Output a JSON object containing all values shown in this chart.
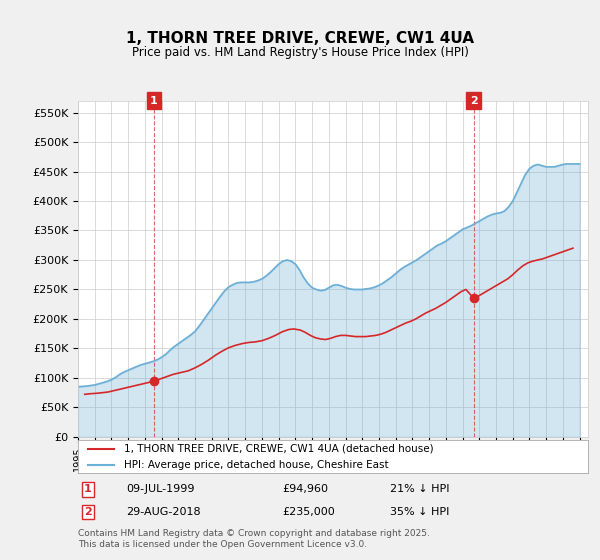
{
  "title": "1, THORN TREE DRIVE, CREWE, CW1 4UA",
  "subtitle": "Price paid vs. HM Land Registry's House Price Index (HPI)",
  "xlabel": "",
  "ylabel": "",
  "ylim": [
    0,
    570000
  ],
  "xlim_start": 1995.0,
  "xlim_end": 2025.5,
  "yticks": [
    0,
    50000,
    100000,
    150000,
    200000,
    250000,
    300000,
    350000,
    400000,
    450000,
    500000,
    550000
  ],
  "ytick_labels": [
    "£0",
    "£50K",
    "£100K",
    "£150K",
    "£200K",
    "£250K",
    "£300K",
    "£350K",
    "£400K",
    "£450K",
    "£500K",
    "£550K"
  ],
  "xticks": [
    1995,
    1996,
    1997,
    1998,
    1999,
    2000,
    2001,
    2002,
    2003,
    2004,
    2005,
    2006,
    2007,
    2008,
    2009,
    2010,
    2011,
    2012,
    2013,
    2014,
    2015,
    2016,
    2017,
    2018,
    2019,
    2020,
    2021,
    2022,
    2023,
    2024,
    2025
  ],
  "hpi_color": "#6baed6",
  "price_color": "#d62728",
  "marker_color_1": "#d62728",
  "marker_color_2": "#d62728",
  "annotation_box_color": "#d62728",
  "purchase1_x": 1999.53,
  "purchase1_y": 94960,
  "purchase1_label": "1",
  "purchase1_date": "09-JUL-1999",
  "purchase1_price": "£94,960",
  "purchase1_hpi": "21% ↓ HPI",
  "purchase2_x": 2018.66,
  "purchase2_y": 235000,
  "purchase2_label": "2",
  "purchase2_date": "29-AUG-2018",
  "purchase2_price": "£235,000",
  "purchase2_hpi": "35% ↓ HPI",
  "legend_line1": "1, THORN TREE DRIVE, CREWE, CW1 4UA (detached house)",
  "legend_line2": "HPI: Average price, detached house, Cheshire East",
  "footnote": "Contains HM Land Registry data © Crown copyright and database right 2025.\nThis data is licensed under the Open Government Licence v3.0.",
  "background_color": "#f0f0f0",
  "plot_bg_color": "#ffffff",
  "hpi_data_x": [
    1995.0,
    1995.25,
    1995.5,
    1995.75,
    1996.0,
    1996.25,
    1996.5,
    1996.75,
    1997.0,
    1997.25,
    1997.5,
    1997.75,
    1998.0,
    1998.25,
    1998.5,
    1998.75,
    1999.0,
    1999.25,
    1999.5,
    1999.75,
    2000.0,
    2000.25,
    2000.5,
    2000.75,
    2001.0,
    2001.25,
    2001.5,
    2001.75,
    2002.0,
    2002.25,
    2002.5,
    2002.75,
    2003.0,
    2003.25,
    2003.5,
    2003.75,
    2004.0,
    2004.25,
    2004.5,
    2004.75,
    2005.0,
    2005.25,
    2005.5,
    2005.75,
    2006.0,
    2006.25,
    2006.5,
    2006.75,
    2007.0,
    2007.25,
    2007.5,
    2007.75,
    2008.0,
    2008.25,
    2008.5,
    2008.75,
    2009.0,
    2009.25,
    2009.5,
    2009.75,
    2010.0,
    2010.25,
    2010.5,
    2010.75,
    2011.0,
    2011.25,
    2011.5,
    2011.75,
    2012.0,
    2012.25,
    2012.5,
    2012.75,
    2013.0,
    2013.25,
    2013.5,
    2013.75,
    2014.0,
    2014.25,
    2014.5,
    2014.75,
    2015.0,
    2015.25,
    2015.5,
    2015.75,
    2016.0,
    2016.25,
    2016.5,
    2016.75,
    2017.0,
    2017.25,
    2017.5,
    2017.75,
    2018.0,
    2018.25,
    2018.5,
    2018.75,
    2019.0,
    2019.25,
    2019.5,
    2019.75,
    2020.0,
    2020.25,
    2020.5,
    2020.75,
    2021.0,
    2021.25,
    2021.5,
    2021.75,
    2022.0,
    2022.25,
    2022.5,
    2022.75,
    2023.0,
    2023.25,
    2023.5,
    2023.75,
    2024.0,
    2024.25,
    2024.5,
    2024.75,
    2025.0
  ],
  "hpi_data_y": [
    85000,
    85500,
    86000,
    87000,
    88000,
    90000,
    92000,
    94000,
    97000,
    101000,
    106000,
    110000,
    113000,
    116000,
    119000,
    122000,
    124000,
    126000,
    128000,
    131000,
    135000,
    140000,
    147000,
    153000,
    158000,
    163000,
    168000,
    173000,
    179000,
    188000,
    198000,
    208000,
    218000,
    228000,
    238000,
    247000,
    254000,
    258000,
    261000,
    262000,
    262000,
    262000,
    263000,
    265000,
    268000,
    273000,
    279000,
    286000,
    293000,
    298000,
    300000,
    298000,
    293000,
    283000,
    270000,
    260000,
    253000,
    250000,
    248000,
    249000,
    253000,
    257000,
    258000,
    256000,
    253000,
    251000,
    250000,
    250000,
    250000,
    251000,
    252000,
    254000,
    257000,
    261000,
    266000,
    271000,
    277000,
    283000,
    288000,
    292000,
    296000,
    300000,
    305000,
    310000,
    315000,
    320000,
    325000,
    328000,
    332000,
    337000,
    342000,
    347000,
    352000,
    355000,
    358000,
    362000,
    366000,
    370000,
    374000,
    377000,
    379000,
    380000,
    383000,
    390000,
    400000,
    415000,
    430000,
    445000,
    455000,
    460000,
    462000,
    460000,
    458000,
    458000,
    458000,
    460000,
    462000,
    463000,
    463000,
    463000,
    463000
  ],
  "price_paid_x": [
    1995.4,
    1995.7,
    1996.2,
    1996.5,
    1996.8,
    1997.1,
    1997.4,
    1997.7,
    1998.0,
    1998.3,
    1998.6,
    1998.9,
    1999.2,
    1999.53,
    1999.8,
    2000.1,
    2000.4,
    2000.7,
    2001.0,
    2001.3,
    2001.6,
    2002.0,
    2002.4,
    2002.8,
    2003.2,
    2003.6,
    2004.0,
    2004.4,
    2004.8,
    2005.2,
    2005.6,
    2006.0,
    2006.4,
    2006.8,
    2007.2,
    2007.6,
    2007.9,
    2008.3,
    2008.6,
    2008.9,
    2009.2,
    2009.5,
    2009.8,
    2010.1,
    2010.4,
    2010.7,
    2011.0,
    2011.3,
    2011.6,
    2011.9,
    2012.2,
    2012.5,
    2012.8,
    2013.1,
    2013.4,
    2013.7,
    2014.0,
    2014.3,
    2014.6,
    2014.9,
    2015.2,
    2015.5,
    2015.8,
    2016.1,
    2016.4,
    2016.7,
    2017.0,
    2017.3,
    2017.6,
    2017.9,
    2018.2,
    2018.66,
    2018.9,
    2019.2,
    2019.5,
    2019.8,
    2020.1,
    2020.4,
    2020.7,
    2021.0,
    2021.3,
    2021.6,
    2021.9,
    2022.2,
    2022.5,
    2022.8,
    2023.1,
    2023.4,
    2023.7,
    2024.0,
    2024.3,
    2024.6
  ],
  "price_paid_y": [
    72000,
    73000,
    74000,
    75000,
    76000,
    78000,
    80000,
    82000,
    84000,
    86000,
    88000,
    90000,
    92000,
    94960,
    97000,
    100000,
    103000,
    106000,
    108000,
    110000,
    112000,
    117000,
    123000,
    130000,
    138000,
    145000,
    151000,
    155000,
    158000,
    160000,
    161000,
    163000,
    167000,
    172000,
    178000,
    182000,
    183000,
    181000,
    177000,
    172000,
    168000,
    166000,
    165000,
    167000,
    170000,
    172000,
    172000,
    171000,
    170000,
    170000,
    170000,
    171000,
    172000,
    174000,
    177000,
    181000,
    185000,
    189000,
    193000,
    196000,
    200000,
    205000,
    210000,
    214000,
    218000,
    223000,
    228000,
    234000,
    240000,
    246000,
    250000,
    235000,
    238000,
    243000,
    248000,
    253000,
    258000,
    263000,
    268000,
    275000,
    283000,
    290000,
    295000,
    298000,
    300000,
    302000,
    305000,
    308000,
    311000,
    314000,
    317000,
    320000
  ]
}
